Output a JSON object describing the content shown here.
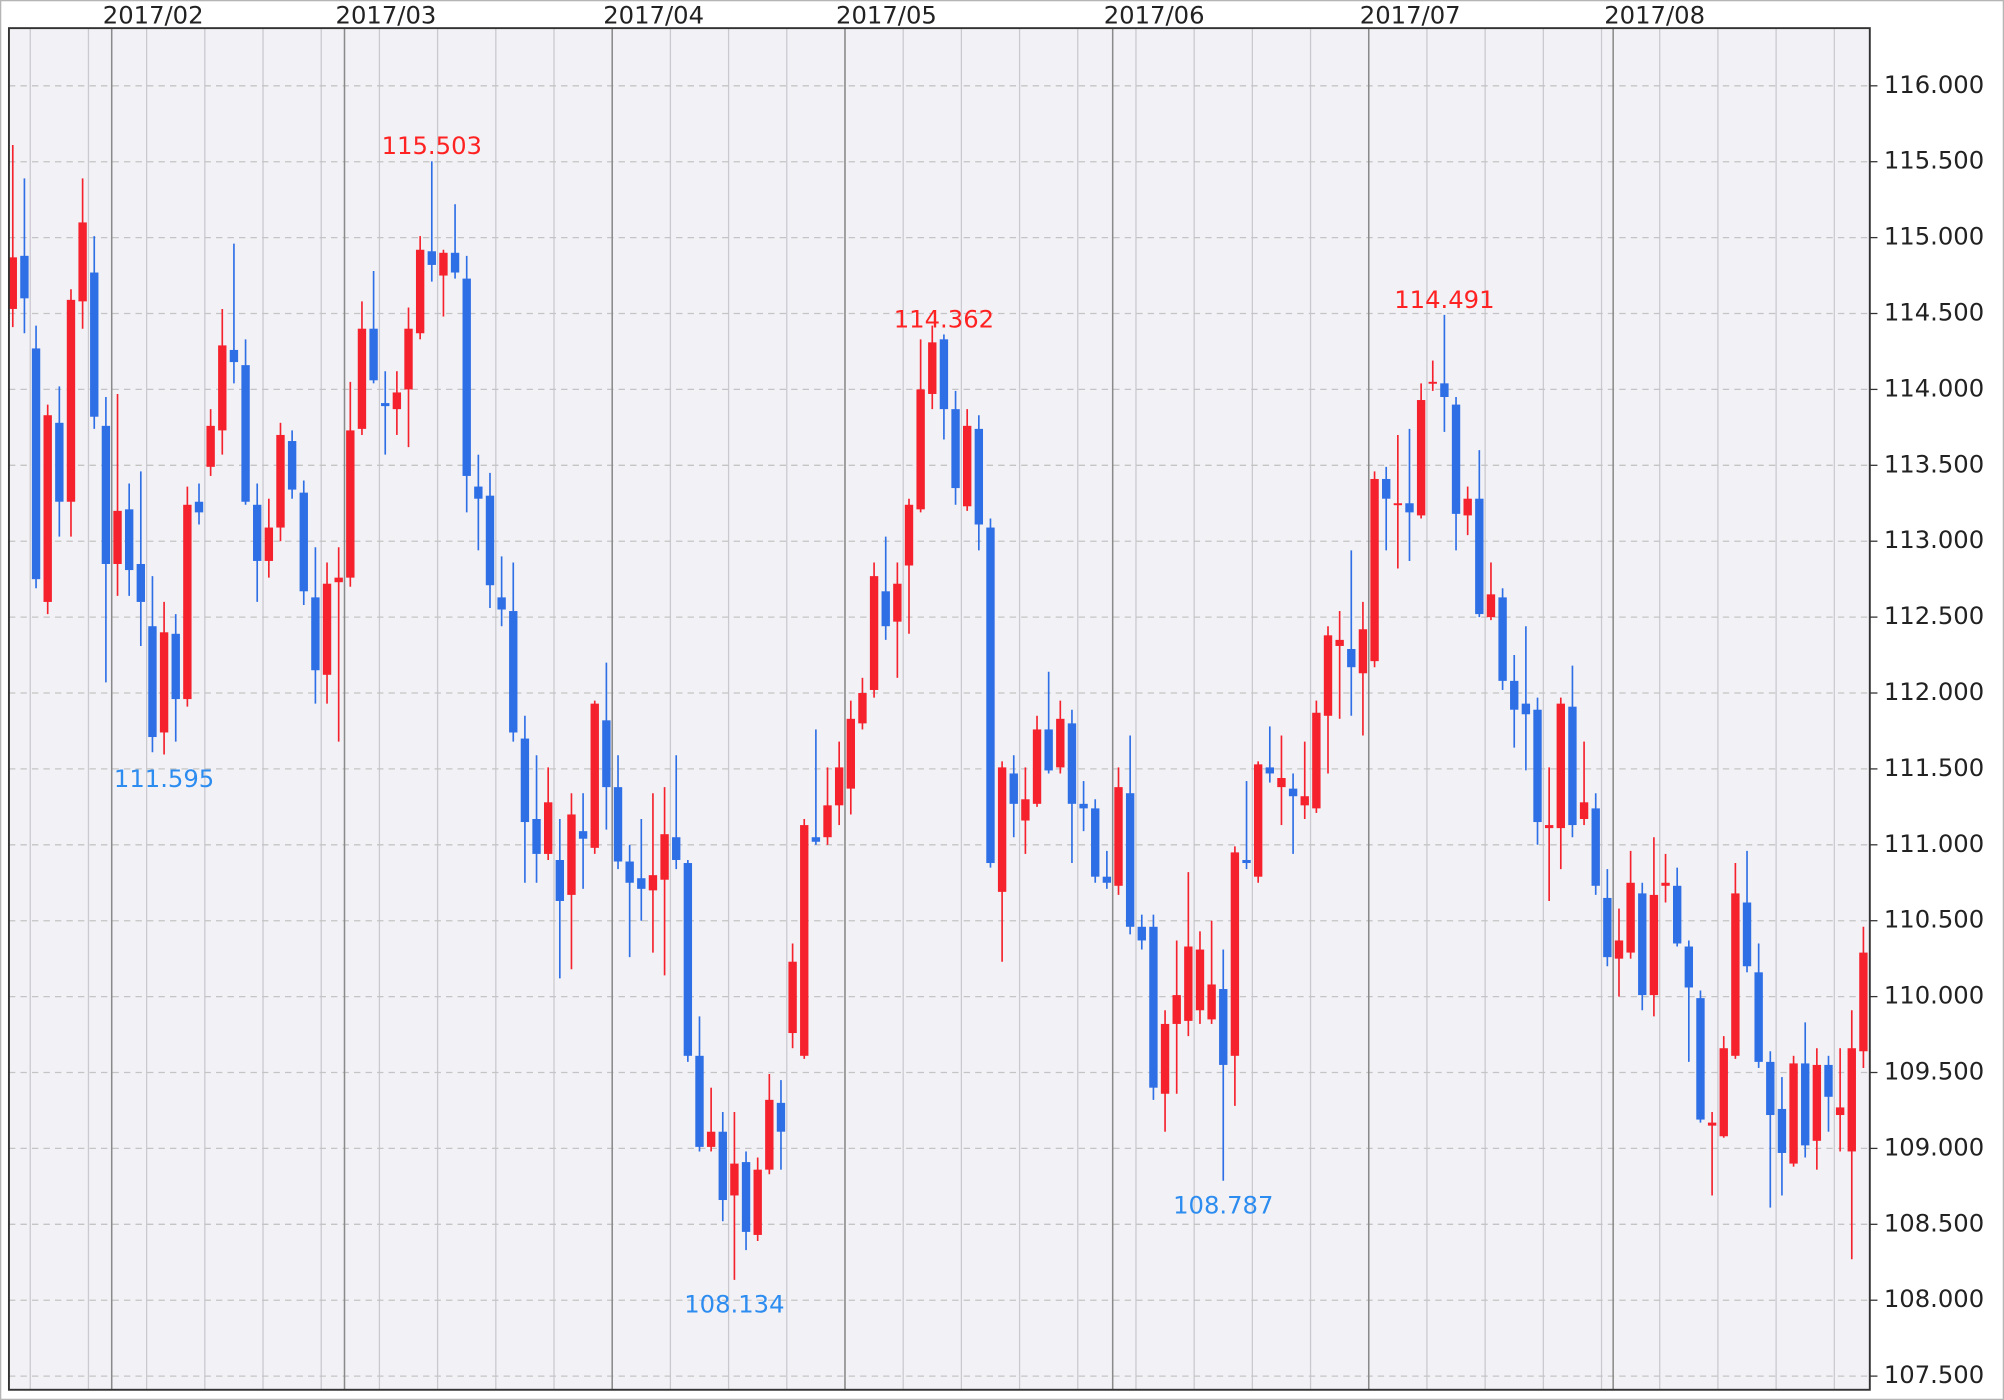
{
  "chart_data": {
    "type": "candlestick",
    "categories": [
      null,
      null,
      null,
      null,
      null,
      null,
      null,
      null,
      null,
      "2017/02",
      null,
      null,
      null,
      null,
      null,
      null,
      null,
      null,
      null,
      null,
      null,
      null,
      null,
      null,
      null,
      null,
      null,
      null,
      null,
      "2017/03",
      null,
      null,
      null,
      null,
      null,
      null,
      null,
      null,
      null,
      null,
      null,
      null,
      null,
      null,
      null,
      null,
      null,
      null,
      null,
      null,
      null,
      null,
      "2017/04",
      null,
      null,
      null,
      null,
      null,
      null,
      null,
      null,
      null,
      null,
      null,
      null,
      null,
      null,
      null,
      null,
      null,
      null,
      null,
      "2017/05",
      null,
      null,
      null,
      null,
      null,
      null,
      null,
      null,
      null,
      null,
      null,
      null,
      null,
      null,
      null,
      null,
      null,
      null,
      null,
      null,
      null,
      null,
      "2017/06",
      null,
      null,
      null,
      null,
      null,
      null,
      null,
      null,
      null,
      null,
      null,
      null,
      null,
      null,
      null,
      null,
      null,
      null,
      null,
      null,
      null,
      "2017/07",
      null,
      null,
      null,
      null,
      null,
      null,
      null,
      null,
      null,
      null,
      null,
      null,
      null,
      null,
      null,
      null,
      null,
      null,
      null,
      null,
      "2017/08",
      null,
      null,
      null,
      null,
      null,
      null,
      null,
      null,
      null,
      null,
      null,
      null,
      null,
      null,
      null,
      null,
      null,
      null,
      null,
      null,
      null
    ],
    "open": [
      114.53,
      114.88,
      114.27,
      112.6,
      113.78,
      113.26,
      114.58,
      114.77,
      113.76,
      112.85,
      113.21,
      112.85,
      112.44,
      111.74,
      112.39,
      111.96,
      113.26,
      113.49,
      113.73,
      114.26,
      114.16,
      113.24,
      112.87,
      113.09,
      113.66,
      113.32,
      112.63,
      112.12,
      112.73,
      112.76,
      113.74,
      114.4,
      113.91,
      113.87,
      114.0,
      114.37,
      114.91,
      114.75,
      114.9,
      114.73,
      113.36,
      113.3,
      112.63,
      112.54,
      111.7,
      111.17,
      110.94,
      110.9,
      110.67,
      111.09,
      110.98,
      111.82,
      111.38,
      110.89,
      110.78,
      110.7,
      110.77,
      111.05,
      110.88,
      109.61,
      109.01,
      109.11,
      108.69,
      108.91,
      108.43,
      108.86,
      109.3,
      109.76,
      109.61,
      111.05,
      111.05,
      111.26,
      111.37,
      111.8,
      112.02,
      112.67,
      112.47,
      112.84,
      113.21,
      113.97,
      114.33,
      113.87,
      113.23,
      113.74,
      113.09,
      110.69,
      111.47,
      111.16,
      111.27,
      111.76,
      111.51,
      111.8,
      111.27,
      111.24,
      110.79,
      110.73,
      111.34,
      110.46,
      110.46,
      109.36,
      109.82,
      109.84,
      109.91,
      109.85,
      110.05,
      109.61,
      110.9,
      110.79,
      111.51,
      111.38,
      111.37,
      111.26,
      111.24,
      111.85,
      112.31,
      112.29,
      112.13,
      112.21,
      113.41,
      113.24,
      113.25,
      113.17,
      114.04,
      114.04,
      113.9,
      113.17,
      113.28,
      112.5,
      112.63,
      112.08,
      111.93,
      111.89,
      111.11,
      111.11,
      111.91,
      111.17,
      111.24,
      110.65,
      110.25,
      110.29,
      110.68,
      110.01,
      110.73,
      110.73,
      110.33,
      109.99,
      109.15,
      109.08,
      109.61,
      110.62,
      110.16,
      109.57,
      109.26,
      108.9,
      109.56,
      109.05,
      109.55,
      109.22,
      108.98,
      109.64
    ],
    "high": [
      115.61,
      115.39,
      114.42,
      113.9,
      114.02,
      114.66,
      115.39,
      115.01,
      113.95,
      113.97,
      113.38,
      113.46,
      112.77,
      112.6,
      112.52,
      113.36,
      113.38,
      113.87,
      114.53,
      114.96,
      114.33,
      113.38,
      113.28,
      113.78,
      113.73,
      113.4,
      112.96,
      112.86,
      112.96,
      114.05,
      114.58,
      114.78,
      114.12,
      114.12,
      114.54,
      115.01,
      115.503,
      114.92,
      115.22,
      114.88,
      113.57,
      113.45,
      112.9,
      112.86,
      111.85,
      111.59,
      111.51,
      111.17,
      111.34,
      111.34,
      111.95,
      112.2,
      111.59,
      111.0,
      111.17,
      111.34,
      111.38,
      111.59,
      110.9,
      109.87,
      109.4,
      109.24,
      109.24,
      108.98,
      108.94,
      109.49,
      109.45,
      110.35,
      111.17,
      111.76,
      111.51,
      111.68,
      111.95,
      112.1,
      112.86,
      113.03,
      112.86,
      113.28,
      114.33,
      114.42,
      114.362,
      113.99,
      113.87,
      113.83,
      113.15,
      111.55,
      111.59,
      111.51,
      111.85,
      112.14,
      111.95,
      111.89,
      111.42,
      111.3,
      110.96,
      111.51,
      111.72,
      110.54,
      110.54,
      109.91,
      110.37,
      110.82,
      110.43,
      110.5,
      110.31,
      110.99,
      111.42,
      111.55,
      111.78,
      111.72,
      111.47,
      111.68,
      111.95,
      112.44,
      112.54,
      112.94,
      112.6,
      113.46,
      113.49,
      113.7,
      113.74,
      114.04,
      114.19,
      114.491,
      113.95,
      113.36,
      113.6,
      112.86,
      112.69,
      112.25,
      112.44,
      111.97,
      111.51,
      111.97,
      112.18,
      111.68,
      111.34,
      110.84,
      110.58,
      110.96,
      110.75,
      111.05,
      110.94,
      110.85,
      110.37,
      110.04,
      109.24,
      109.74,
      110.88,
      110.96,
      110.35,
      109.64,
      109.47,
      109.61,
      109.83,
      109.66,
      109.61,
      109.66,
      109.91,
      110.46
    ],
    "low": [
      114.41,
      114.37,
      112.69,
      112.52,
      113.03,
      113.03,
      114.4,
      113.74,
      112.07,
      112.64,
      112.64,
      112.31,
      111.61,
      111.595,
      111.68,
      111.91,
      113.11,
      113.43,
      113.57,
      114.04,
      113.24,
      112.6,
      112.76,
      113.0,
      113.28,
      112.58,
      111.93,
      111.93,
      111.68,
      112.7,
      113.7,
      114.04,
      113.57,
      113.7,
      113.62,
      114.33,
      114.71,
      114.48,
      114.73,
      113.19,
      112.94,
      112.56,
      112.44,
      111.68,
      110.75,
      110.75,
      110.9,
      110.12,
      110.18,
      110.71,
      110.94,
      111.1,
      110.84,
      110.26,
      110.5,
      110.29,
      110.14,
      110.84,
      109.57,
      108.98,
      108.98,
      108.52,
      108.134,
      108.33,
      108.39,
      108.83,
      108.86,
      109.66,
      109.59,
      111.0,
      111.0,
      111.13,
      111.2,
      111.76,
      111.97,
      112.35,
      112.1,
      112.39,
      113.19,
      113.87,
      113.67,
      113.24,
      113.2,
      112.94,
      110.85,
      110.23,
      111.05,
      110.94,
      111.25,
      111.47,
      111.47,
      110.88,
      111.09,
      110.75,
      110.71,
      110.67,
      110.41,
      110.31,
      109.32,
      109.11,
      109.36,
      109.74,
      109.82,
      109.82,
      108.787,
      109.28,
      110.84,
      110.75,
      111.41,
      111.13,
      110.94,
      111.17,
      111.21,
      111.47,
      111.83,
      111.85,
      111.72,
      112.17,
      112.94,
      112.82,
      112.87,
      113.15,
      113.99,
      113.72,
      112.94,
      113.04,
      112.5,
      112.48,
      112.02,
      111.64,
      111.49,
      111.0,
      110.63,
      110.84,
      111.05,
      111.13,
      110.67,
      110.2,
      110.0,
      110.25,
      109.91,
      109.87,
      110.62,
      110.33,
      109.57,
      109.17,
      108.69,
      109.07,
      109.59,
      110.16,
      109.53,
      108.61,
      108.69,
      108.88,
      108.94,
      108.86,
      109.11,
      108.98,
      108.27,
      109.53
    ],
    "close": [
      114.87,
      114.6,
      112.75,
      113.83,
      113.26,
      114.59,
      115.1,
      113.82,
      112.85,
      113.2,
      112.81,
      112.6,
      111.71,
      112.4,
      111.96,
      113.24,
      113.19,
      113.76,
      114.29,
      114.18,
      113.26,
      112.87,
      113.09,
      113.7,
      113.34,
      112.67,
      112.15,
      112.72,
      112.76,
      113.73,
      114.4,
      114.06,
      113.89,
      113.98,
      114.4,
      114.92,
      114.82,
      114.9,
      114.77,
      113.43,
      113.28,
      112.71,
      112.55,
      111.74,
      111.15,
      110.94,
      111.28,
      110.63,
      111.2,
      111.04,
      111.93,
      111.38,
      110.89,
      110.75,
      110.71,
      110.8,
      111.07,
      110.9,
      109.61,
      109.01,
      109.11,
      108.66,
      108.9,
      108.45,
      108.86,
      109.32,
      109.11,
      110.23,
      111.13,
      111.02,
      111.26,
      111.51,
      111.83,
      112.0,
      112.77,
      112.44,
      112.72,
      113.24,
      114.0,
      114.31,
      113.87,
      113.35,
      113.76,
      113.11,
      110.88,
      111.51,
      111.27,
      111.3,
      111.76,
      111.49,
      111.83,
      111.27,
      111.24,
      110.79,
      110.75,
      111.38,
      110.46,
      110.37,
      109.4,
      109.82,
      110.01,
      110.33,
      110.31,
      110.08,
      109.55,
      110.95,
      110.88,
      111.53,
      111.47,
      111.44,
      111.32,
      111.32,
      111.87,
      112.38,
      112.35,
      112.17,
      112.42,
      113.41,
      113.28,
      113.25,
      113.19,
      113.93,
      114.05,
      113.95,
      113.18,
      113.28,
      112.52,
      112.65,
      112.08,
      111.89,
      111.86,
      111.15,
      111.13,
      111.93,
      111.13,
      111.28,
      110.73,
      110.26,
      110.37,
      110.75,
      110.01,
      110.67,
      110.75,
      110.35,
      110.06,
      109.19,
      109.17,
      109.66,
      110.68,
      110.2,
      109.57,
      109.22,
      108.97,
      109.56,
      109.02,
      109.55,
      109.34,
      109.27,
      109.66,
      110.29
    ],
    "up_color": "#f5222d",
    "down_color": "#2f6fe6",
    "high_label_color": "#ff2222",
    "low_label_color": "#2d8cf0",
    "annotations": [
      {
        "text": "111.595",
        "value": 111.595
      },
      {
        "text": "115.503",
        "value": 115.503
      },
      {
        "text": "108.134",
        "value": 108.134
      },
      {
        "text": "114.362",
        "value": 114.362
      },
      {
        "text": "108.787",
        "value": 108.787
      },
      {
        "text": "114.491",
        "value": 114.491
      }
    ],
    "ylim": [
      107.41,
      116.38
    ],
    "yticks": [
      {
        "value": 107.5,
        "label": "107.500"
      },
      {
        "value": 108,
        "label": "108.000"
      },
      {
        "value": 108.5,
        "label": "108.500"
      },
      {
        "value": 109,
        "label": "109.000"
      },
      {
        "value": 109.5,
        "label": "109.500"
      },
      {
        "value": 110,
        "label": "110.000"
      },
      {
        "value": 110.5,
        "label": "110.500"
      },
      {
        "value": 111,
        "label": "111.000"
      },
      {
        "value": 111.5,
        "label": "111.500"
      },
      {
        "value": 112,
        "label": "112.000"
      },
      {
        "value": 112.5,
        "label": "112.500"
      },
      {
        "value": 113,
        "label": "113.000"
      },
      {
        "value": 113.5,
        "label": "113.500"
      },
      {
        "value": 114,
        "label": "114.000"
      },
      {
        "value": 114.5,
        "label": "114.500"
      },
      {
        "value": 115,
        "label": "115.000"
      },
      {
        "value": 115.5,
        "label": "115.500"
      },
      {
        "value": 116,
        "label": "116.000"
      }
    ],
    "grid": true,
    "y_axis_side": "right"
  }
}
